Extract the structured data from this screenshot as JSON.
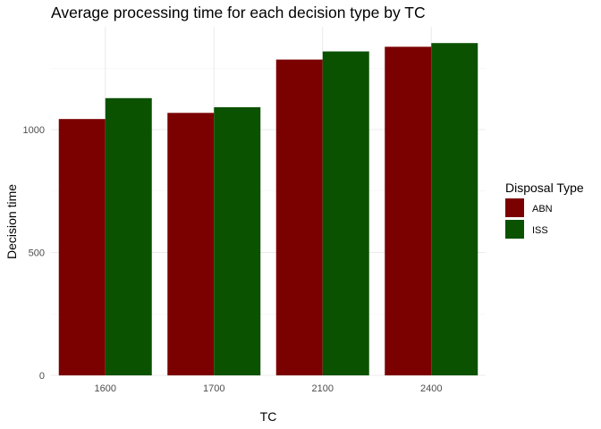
{
  "chart_data": {
    "type": "bar",
    "title": "Average processing time for each decision type by TC",
    "xlabel": "TC",
    "ylabel": "Decision time",
    "categories": [
      "1600",
      "1700",
      "2100",
      "2400"
    ],
    "series": [
      {
        "name": "ABN",
        "color": "#7B0000",
        "values": [
          1043,
          1068,
          1285,
          1337
        ]
      },
      {
        "name": "ISS",
        "color": "#0B5200",
        "values": [
          1128,
          1091,
          1318,
          1352
        ]
      }
    ],
    "ylim": [
      0,
      1450
    ],
    "yticks": [
      0,
      500,
      1000
    ],
    "ytick_labels": [
      "0",
      "500",
      "1000"
    ],
    "legend": {
      "title": "Disposal Type",
      "position": "right"
    },
    "grid": true
  }
}
